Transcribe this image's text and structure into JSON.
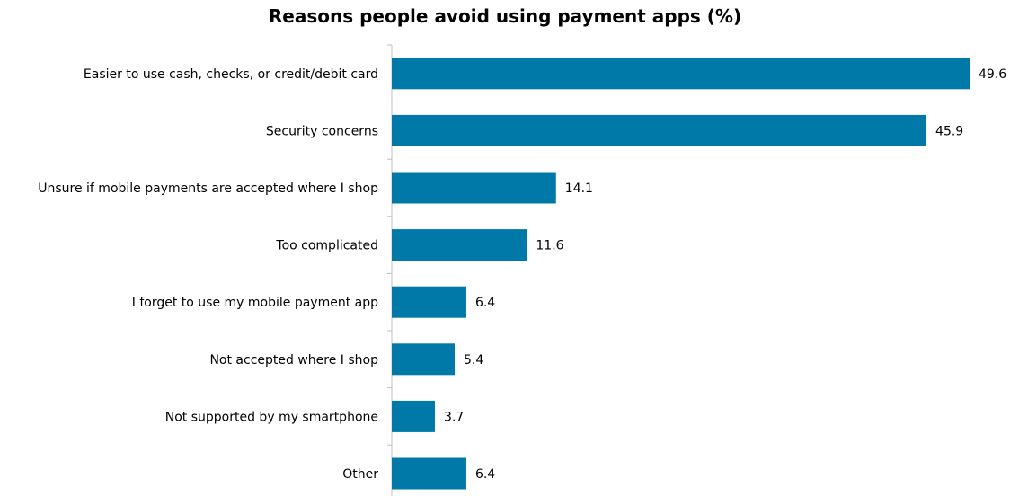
{
  "chart_data": {
    "type": "bar",
    "orientation": "horizontal",
    "title": "Reasons people avoid using payment apps (%)",
    "xlabel": "",
    "ylabel": "",
    "categories": [
      "Easier to use cash, checks, or credit/debit card",
      "Security concerns",
      "Unsure if mobile payments are accepted where I shop",
      "Too complicated",
      "I forget to use my mobile payment app",
      "Not accepted where I shop",
      "Not supported by my smartphone",
      "Other"
    ],
    "values": [
      49.6,
      45.9,
      14.1,
      11.6,
      6.4,
      5.4,
      3.7,
      6.4
    ],
    "value_labels": [
      "49.6",
      "45.9",
      "14.1",
      "11.6",
      "6.4",
      "5.4",
      "3.7",
      "6.4"
    ],
    "xlim": [
      0,
      50
    ],
    "grid": false,
    "legend": "none",
    "bar_color": "#0079A8",
    "axis_color": "#BFBFBF"
  }
}
